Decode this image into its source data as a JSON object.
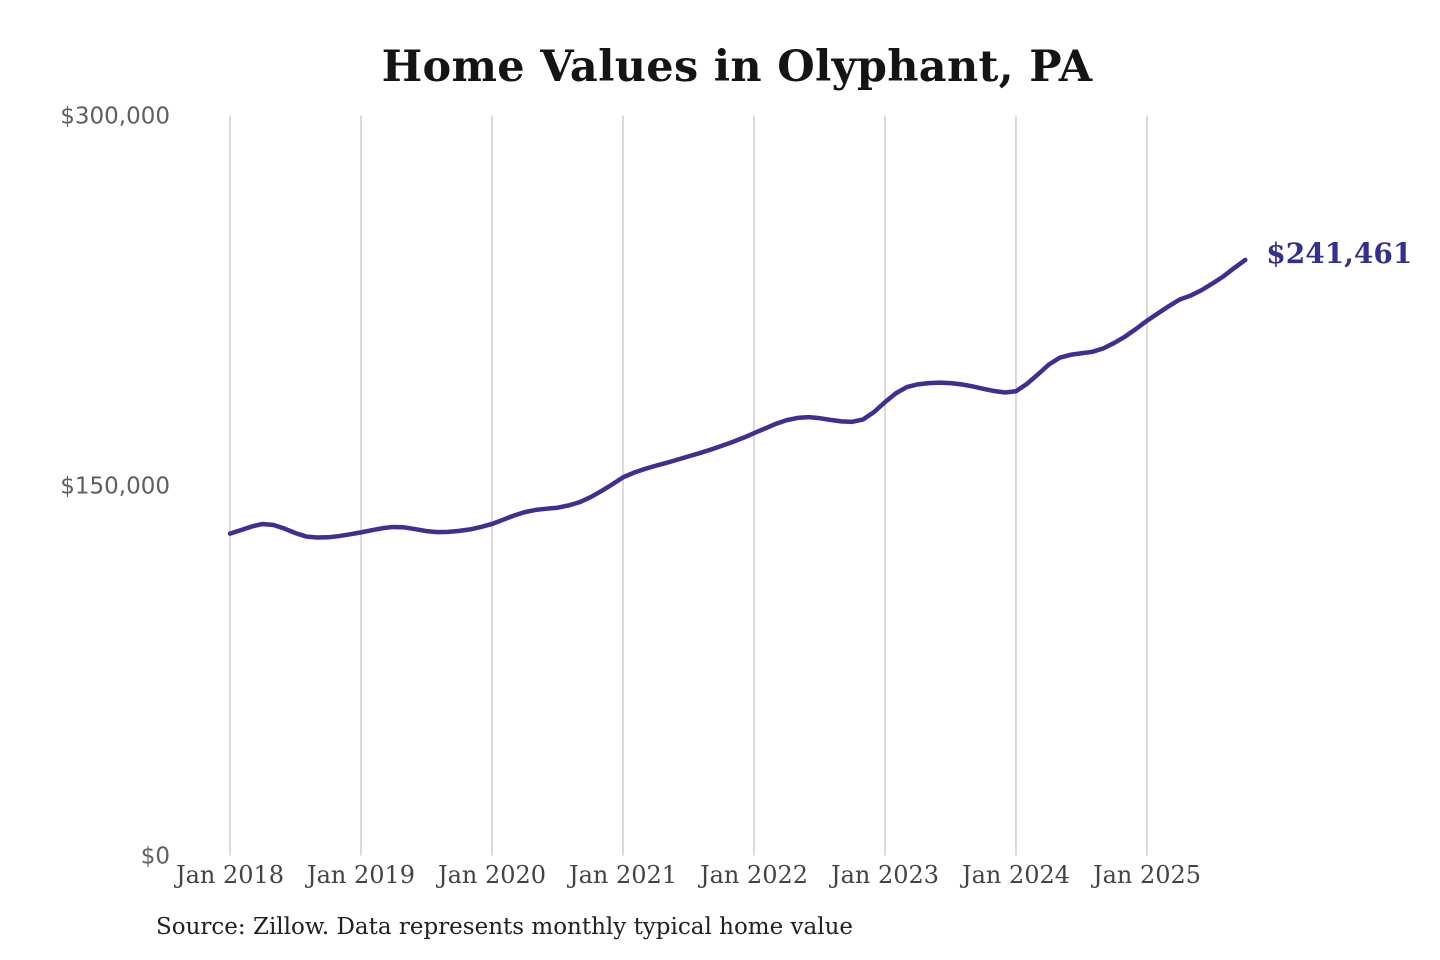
{
  "chart": {
    "title": "Home Values in Olyphant, PA",
    "source": "Source: Zillow. Data represents monthly typical home value",
    "end_label": "$241,461",
    "colors": {
      "line": "#3a3191",
      "end_label": "#34308e",
      "gridline": "#cccccc",
      "y_tick_text": "#5f5f5f",
      "x_tick_text": "#444444",
      "title_text": "#141414",
      "source_text": "#212121",
      "background": "#ffffff"
    }
  },
  "chart_data": {
    "type": "line",
    "title": "Home Values in Olyphant, PA",
    "xlabel": "",
    "ylabel": "",
    "ylim": [
      0,
      300000
    ],
    "grid": "vertical-only",
    "legend": false,
    "x_tick_labels": [
      "Jan 2018",
      "Jan 2019",
      "Jan 2020",
      "Jan 2021",
      "Jan 2022",
      "Jan 2023",
      "Jan 2024",
      "Jan 2025"
    ],
    "y_ticks": [
      {
        "value": 0,
        "label": "$0"
      },
      {
        "value": 150000,
        "label": "$150,000"
      },
      {
        "value": 300000,
        "label": "$300,000"
      }
    ],
    "end_annotation": {
      "value": 241461,
      "label": "$241,461"
    },
    "source": "Source: Zillow. Data represents monthly typical home value",
    "series": [
      {
        "name": "Typical home value",
        "start": "2018-01",
        "end": "2025-10",
        "frequency": "monthly",
        "values": [
          130500,
          131900,
          133400,
          134400,
          134000,
          132500,
          130700,
          129300,
          128900,
          129000,
          129500,
          130200,
          131000,
          131900,
          132700,
          133200,
          133000,
          132300,
          131500,
          131100,
          131200,
          131600,
          132200,
          133200,
          134400,
          136100,
          137800,
          139200,
          140100,
          140600,
          141000,
          141900,
          143200,
          145200,
          147700,
          150400,
          153300,
          155200,
          156700,
          158000,
          159200,
          160500,
          161800,
          163100,
          164500,
          166000,
          167600,
          169300,
          171200,
          173100,
          175000,
          176500,
          177400,
          177700,
          177300,
          176600,
          176000,
          175800,
          176800,
          179800,
          183800,
          187400,
          189900,
          191000,
          191500,
          191700,
          191500,
          191000,
          190200,
          189200,
          188300,
          187700,
          188200,
          191200,
          195000,
          199000,
          201800,
          203000,
          203600,
          204200,
          205600,
          207800,
          210400,
          213500,
          216800,
          219800,
          222700,
          225400,
          227000,
          229200,
          231900,
          234800,
          238200,
          241461
        ]
      }
    ]
  }
}
